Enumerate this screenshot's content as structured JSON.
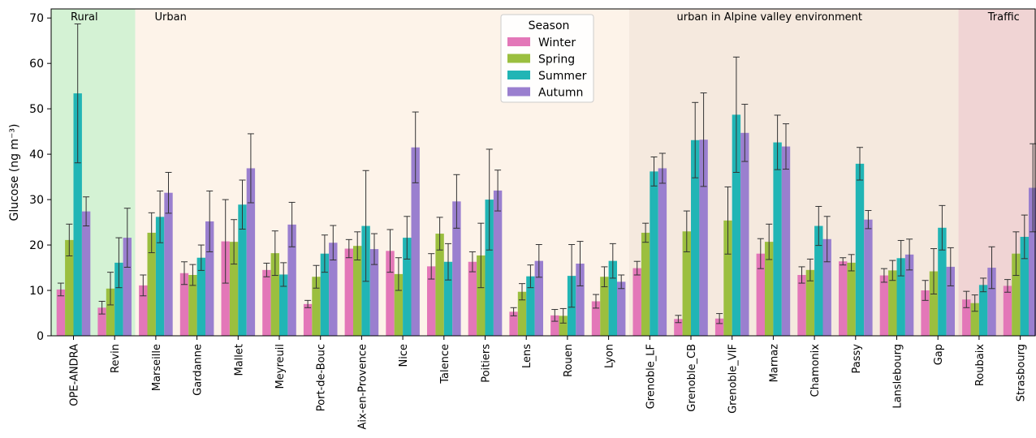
{
  "chart_data": {
    "type": "bar",
    "ylabel": "Glucose (ng m⁻³)",
    "ylim": [
      0,
      72
    ],
    "yticks": [
      0,
      10,
      20,
      30,
      40,
      50,
      60,
      70
    ],
    "grid": false,
    "legend": {
      "title": "Season",
      "placement": "top-center"
    },
    "categories": [
      "OPE-ANDRA",
      "Revin",
      "Marseille",
      "Gardanne",
      "Mallet",
      "Meyreuil",
      "Port-de-Bouc",
      "Aix-en-Provence",
      "Nice",
      "Talence",
      "Poitiers",
      "Lens",
      "Rouen",
      "Lyon",
      "Grenoble_LF",
      "Grenoble_CB",
      "Grenoble_VIF",
      "Marnaz",
      "Chamonix",
      "Passy",
      "Lanslebourg",
      "Gap",
      "Roubaix",
      "Strasbourg"
    ],
    "regions": [
      {
        "label": "Rural",
        "start": 0,
        "end": 1,
        "color": "#d4f2d4"
      },
      {
        "label": "Urban",
        "start": 2,
        "end": 13,
        "color": "#fdf3e9"
      },
      {
        "label": "urban in Alpine  valley environment",
        "start": 14,
        "end": 21,
        "color": "#f5e9de"
      },
      {
        "label": "Traffic",
        "start": 22,
        "end": 23,
        "color": "#f0d4d4"
      }
    ],
    "series": [
      {
        "name": "Winter",
        "color": "#e377b8",
        "values": [
          10.2,
          6.2,
          11.1,
          13.8,
          20.8,
          14.5,
          7.0,
          19.2,
          18.7,
          15.3,
          16.3,
          5.3,
          4.5,
          7.6,
          14.9,
          3.7,
          3.8,
          18.1,
          13.4,
          16.4,
          13.3,
          10.0,
          8.0,
          11.0
        ],
        "errors": [
          1.4,
          1.4,
          2.3,
          2.5,
          9.2,
          1.5,
          0.8,
          2.0,
          4.7,
          2.8,
          2.2,
          0.9,
          1.3,
          1.5,
          1.5,
          0.8,
          1.1,
          3.3,
          1.8,
          0.8,
          1.5,
          2.2,
          1.8,
          1.4
        ]
      },
      {
        "name": "Spring",
        "color": "#9bbf3f",
        "values": [
          21.1,
          10.4,
          22.7,
          13.4,
          20.7,
          18.2,
          13.0,
          19.8,
          13.6,
          22.5,
          17.7,
          9.7,
          4.4,
          13.0,
          22.7,
          23.0,
          25.4,
          20.7,
          14.5,
          16.1,
          14.4,
          14.2,
          7.2,
          18.1
        ],
        "errors": [
          3.5,
          3.6,
          4.4,
          2.3,
          4.9,
          4.9,
          2.5,
          3.1,
          3.6,
          3.6,
          7.1,
          1.8,
          1.6,
          2.2,
          2.1,
          4.5,
          7.4,
          3.9,
          2.4,
          1.8,
          2.2,
          5.0,
          1.8,
          4.8
        ]
      },
      {
        "name": "Summer",
        "color": "#21b5b5",
        "values": [
          53.4,
          16.1,
          26.2,
          17.2,
          28.9,
          13.5,
          18.1,
          24.2,
          21.6,
          16.3,
          30.0,
          13.1,
          13.2,
          16.5,
          36.2,
          43.1,
          48.7,
          42.6,
          24.2,
          37.9,
          17.1,
          23.8,
          11.2,
          21.8
        ],
        "errors": [
          15.3,
          5.5,
          5.7,
          2.8,
          5.4,
          2.6,
          4.1,
          12.2,
          4.7,
          4.0,
          11.1,
          2.5,
          6.9,
          3.8,
          3.2,
          8.3,
          12.7,
          6.0,
          4.3,
          3.6,
          3.9,
          4.9,
          1.5,
          4.8
        ]
      },
      {
        "name": "Autumn",
        "color": "#9a7fcf",
        "values": [
          27.4,
          21.6,
          31.5,
          25.2,
          36.9,
          24.5,
          20.5,
          19.1,
          41.5,
          29.6,
          32.0,
          16.5,
          15.9,
          11.9,
          36.9,
          43.2,
          44.7,
          41.7,
          21.3,
          25.6,
          17.9,
          15.2,
          15.0,
          32.6
        ],
        "errors": [
          3.2,
          6.5,
          4.5,
          6.7,
          7.6,
          4.9,
          3.8,
          3.4,
          7.8,
          5.9,
          4.5,
          3.6,
          4.9,
          1.5,
          3.3,
          10.3,
          6.3,
          5.0,
          5.0,
          2.0,
          3.4,
          4.2,
          4.6,
          9.7
        ]
      }
    ]
  }
}
